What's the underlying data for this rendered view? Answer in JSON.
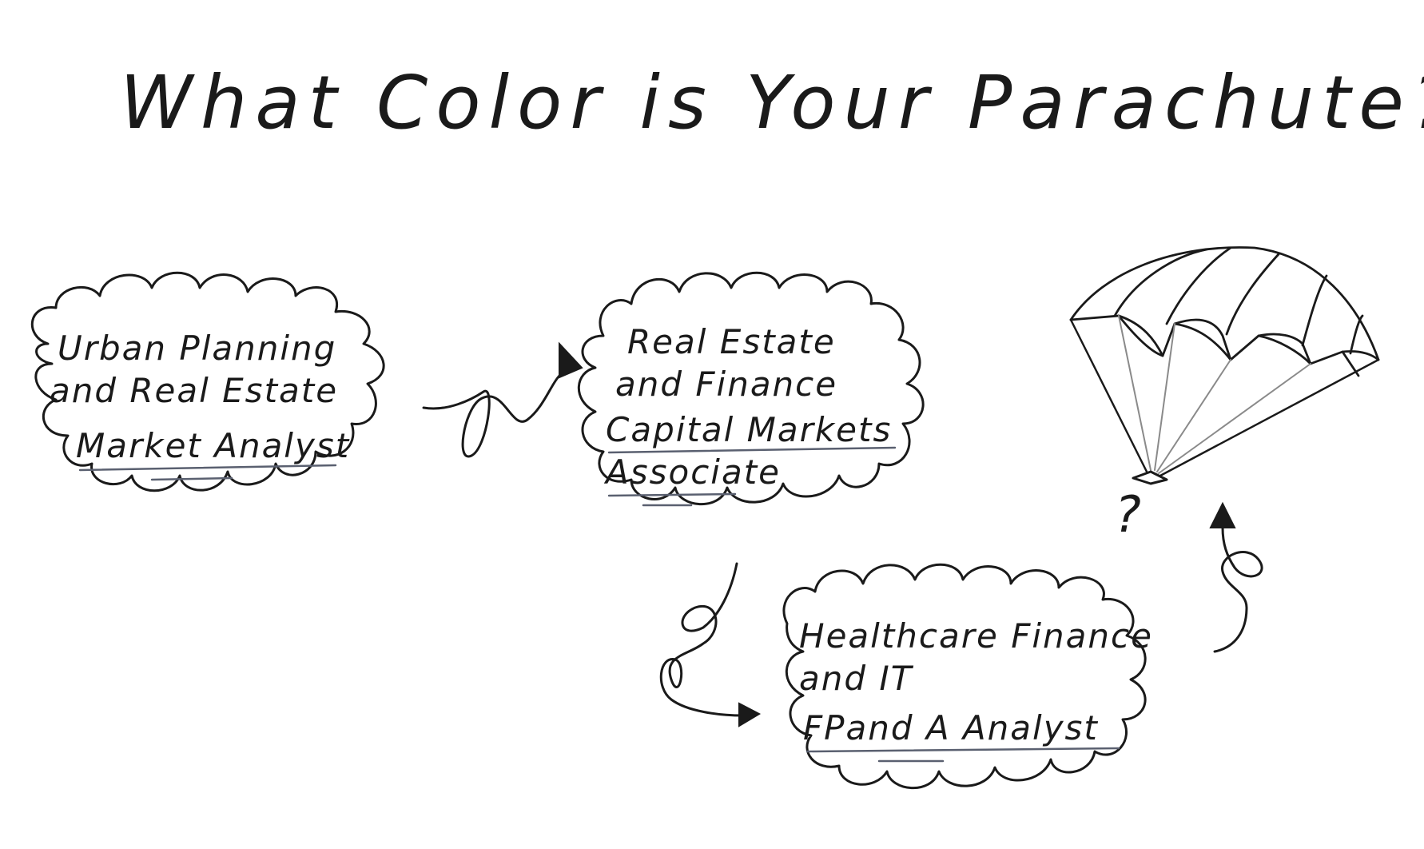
{
  "title": "What Color is Your Parachute?",
  "nodes": [
    {
      "id": "urban",
      "line1": "Urban Planning",
      "line2": "and Real Estate",
      "role": "Market Analyst"
    },
    {
      "id": "realestate",
      "line1": "Real Estate",
      "line2": "and Finance",
      "role_line1": "Capital Markets",
      "role_line2": "Associate"
    },
    {
      "id": "healthcare",
      "line1": "Healthcare Finance",
      "line2": "and IT",
      "role": "FPand A Analyst"
    }
  ],
  "parachute_label": "?",
  "colors": {
    "ink": "#1a1a1a",
    "underline": "#5a6070",
    "cord": "#8a8a8a",
    "background": "#ffffff"
  }
}
